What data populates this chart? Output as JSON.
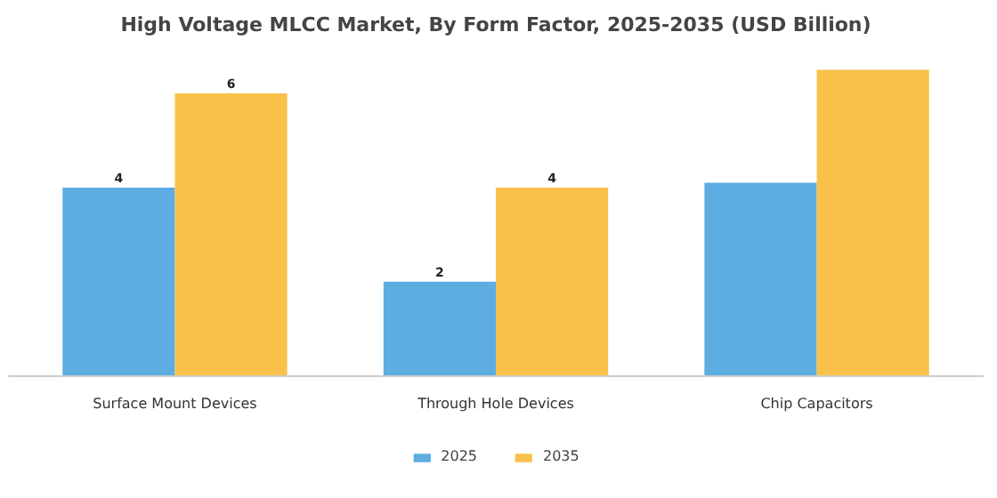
{
  "chart_data": {
    "type": "bar",
    "title": "High Voltage MLCC Market, By Form Factor, 2025-2035 (USD Billion)",
    "categories": [
      "Surface Mount Devices",
      "Through Hole Devices",
      "Chip Capacitors"
    ],
    "legend": "bottom",
    "series": [
      {
        "name": "2025",
        "color": "#5dade2",
        "values": [
          4,
          2,
          4.1
        ],
        "value_labels": [
          "4",
          "2",
          null
        ]
      },
      {
        "name": "2035",
        "color": "#f9c04a",
        "values": [
          6,
          4,
          6.5
        ],
        "value_labels": [
          "6",
          "4",
          null
        ]
      }
    ]
  }
}
